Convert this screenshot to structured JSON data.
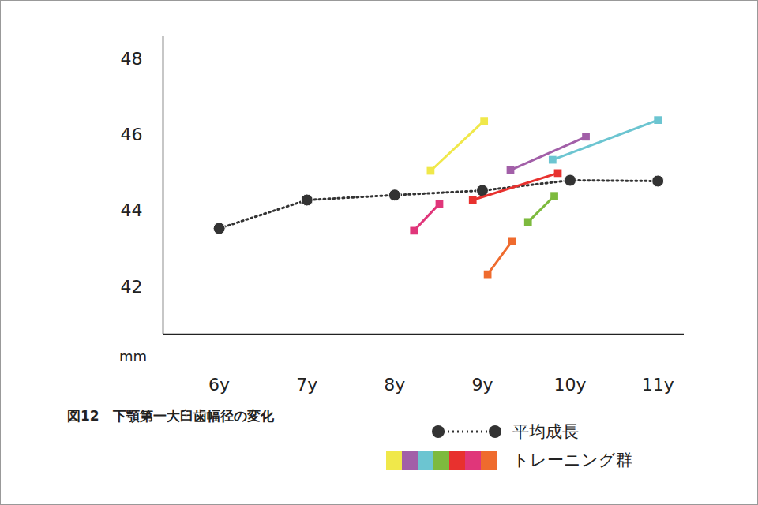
{
  "chart_data": {
    "type": "line",
    "title": "図12　下顎第一大臼歯幅径の変化",
    "y_label": "mm",
    "xlim": [
      5.36,
      11.3
    ],
    "ylim": [
      40.75,
      48.6
    ],
    "xticks": [
      {
        "value": 6,
        "label": "6y"
      },
      {
        "value": 7,
        "label": "7y"
      },
      {
        "value": 8,
        "label": "8y"
      },
      {
        "value": 9,
        "label": "9y"
      },
      {
        "value": 10,
        "label": "10y"
      },
      {
        "value": 11,
        "label": "11y"
      }
    ],
    "yticks": [
      42,
      44,
      46,
      48
    ],
    "grid": false,
    "legend": "bottom-right",
    "series": [
      {
        "name": "平均成長",
        "color": "#333333",
        "marker": "circle",
        "line_style": "dotted",
        "x": [
          6,
          7,
          8,
          9,
          10,
          11
        ],
        "values": [
          43.54,
          44.29,
          44.42,
          44.54,
          44.81,
          44.79
        ]
      },
      {
        "name": "トレーニング群",
        "color": "#f0e84a",
        "marker": "square",
        "line_style": "solid",
        "x": [
          8.41,
          9.02
        ],
        "values": [
          45.06,
          46.38
        ]
      },
      {
        "name": "トレーニング群",
        "color": "#a25fa8",
        "marker": "square",
        "line_style": "solid",
        "x": [
          9.32,
          10.18
        ],
        "values": [
          45.08,
          45.96
        ]
      },
      {
        "name": "トレーニング群",
        "color": "#6cc5d1",
        "marker": "square",
        "line_style": "solid",
        "x": [
          9.8,
          11.0
        ],
        "values": [
          45.35,
          46.4
        ]
      },
      {
        "name": "トレーニング群",
        "color": "#7dba3e",
        "marker": "square",
        "line_style": "solid",
        "x": [
          9.52,
          9.82
        ],
        "values": [
          43.71,
          44.4
        ]
      },
      {
        "name": "トレーニング群",
        "color": "#e8312e",
        "marker": "square",
        "line_style": "solid",
        "x": [
          8.89,
          9.86
        ],
        "values": [
          44.29,
          45.0
        ]
      },
      {
        "name": "トレーニング群",
        "color": "#e0367a",
        "marker": "square",
        "line_style": "solid",
        "x": [
          8.22,
          8.51
        ],
        "values": [
          43.48,
          44.19
        ]
      },
      {
        "name": "トレーニング群",
        "color": "#ef6b2e",
        "marker": "square",
        "line_style": "solid",
        "x": [
          9.06,
          9.34
        ],
        "values": [
          42.33,
          43.21
        ]
      }
    ]
  }
}
